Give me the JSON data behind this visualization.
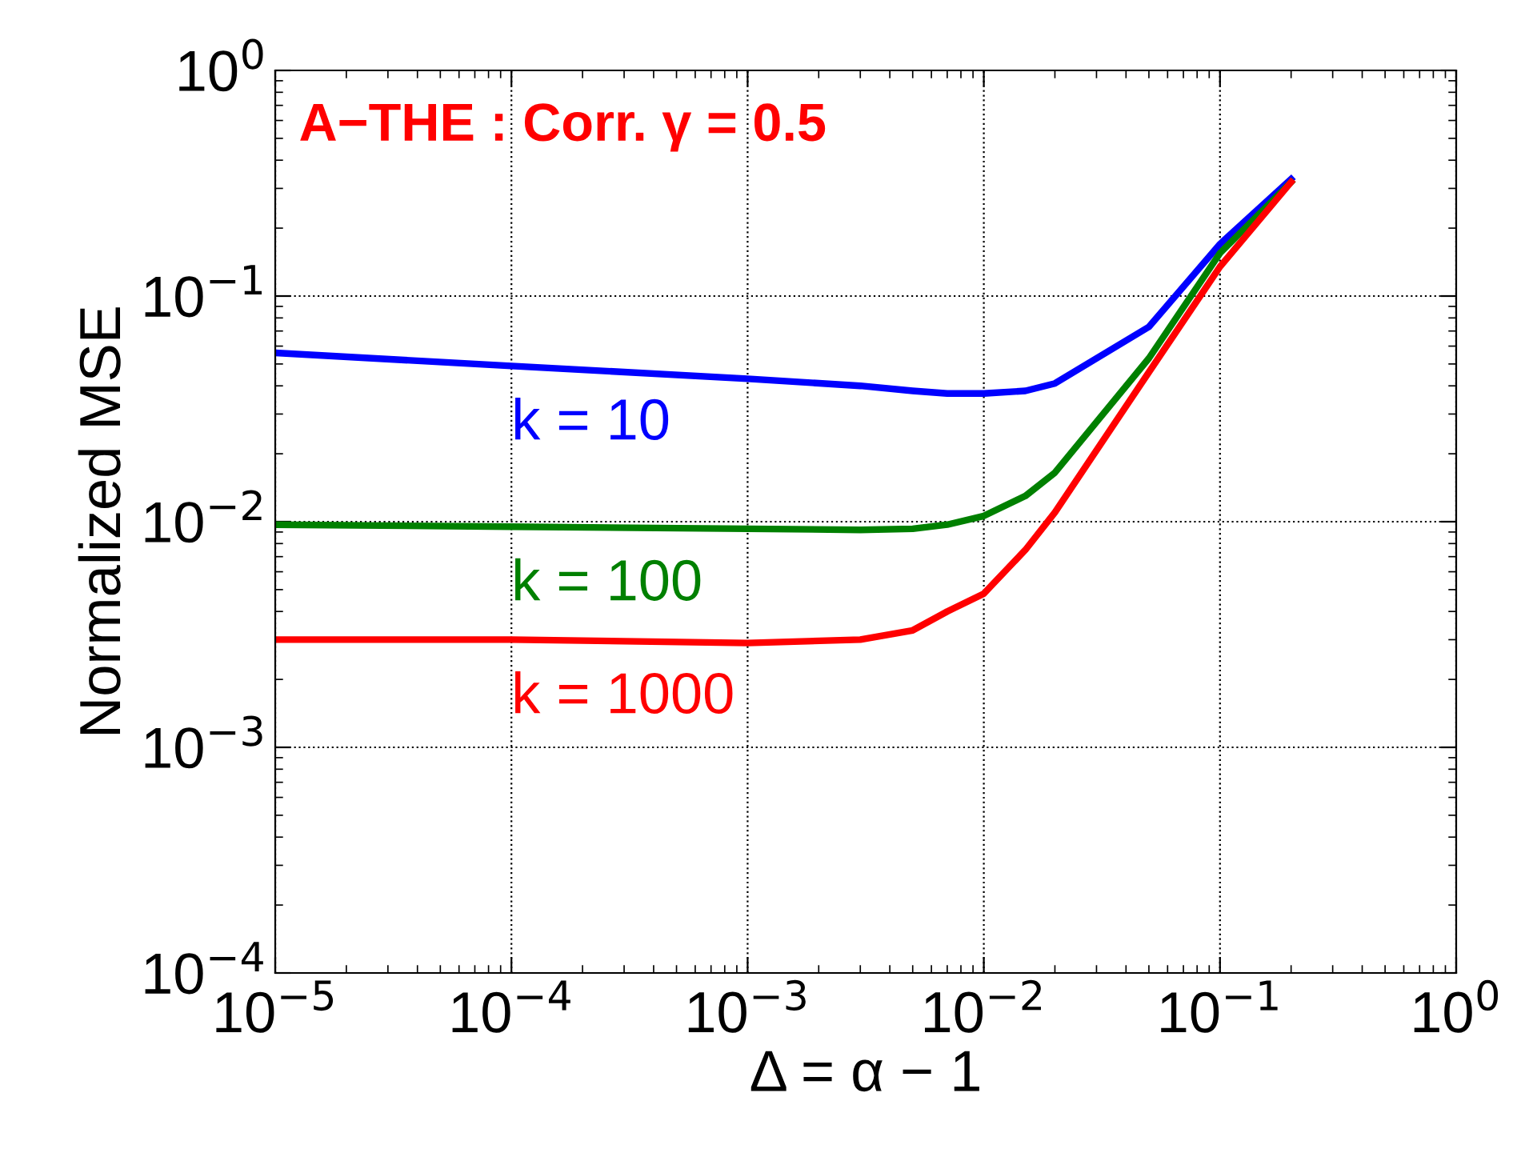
{
  "chart_data": {
    "type": "line",
    "title": "A−THE : Corr. γ = 0.5",
    "xlabel": "Δ = α − 1",
    "ylabel": "Normalized MSE",
    "log": "xy",
    "grid": true,
    "line_style": "solid",
    "marker": "none",
    "xlim": [
      1e-05,
      1
    ],
    "ylim": [
      0.0001,
      1
    ],
    "xticks": [
      {
        "value": 1e-05,
        "label": "10$^{−5}$"
      },
      {
        "value": 0.0001,
        "label": "10$^{−4}$"
      },
      {
        "value": 0.001,
        "label": "10$^{−3}$"
      },
      {
        "value": 0.01,
        "label": "10$^{−2}$"
      },
      {
        "value": 0.1,
        "label": "10$^{−1}$"
      },
      {
        "value": 1,
        "label": "10$^{0}$"
      }
    ],
    "yticks": [
      {
        "value": 0.0001,
        "label": "10$^{−4}$"
      },
      {
        "value": 0.001,
        "label": "10$^{−3}$"
      },
      {
        "value": 0.01,
        "label": "10$^{−2}$"
      },
      {
        "value": 0.1,
        "label": "10$^{−1}$"
      },
      {
        "value": 1,
        "label": "10$^{0}$"
      }
    ],
    "x": [
      1e-05,
      0.0001,
      0.001,
      0.003,
      0.005,
      0.007,
      0.01,
      0.015,
      0.02,
      0.05,
      0.1,
      0.2
    ],
    "series": [
      {
        "name": "k = 10",
        "color": "#0000ff",
        "values": [
          0.056,
          0.049,
          0.043,
          0.04,
          0.038,
          0.037,
          0.037,
          0.038,
          0.041,
          0.073,
          0.17,
          0.33
        ]
      },
      {
        "name": "k = 100",
        "color": "#008000",
        "values": [
          0.0097,
          0.0095,
          0.0093,
          0.0092,
          0.0093,
          0.0097,
          0.0106,
          0.013,
          0.0165,
          0.053,
          0.155,
          0.32
        ]
      },
      {
        "name": "k = 1000",
        "color": "#ff0000",
        "values": [
          0.003,
          0.003,
          0.0029,
          0.003,
          0.0033,
          0.004,
          0.0048,
          0.0075,
          0.011,
          0.046,
          0.135,
          0.32
        ]
      }
    ]
  }
}
